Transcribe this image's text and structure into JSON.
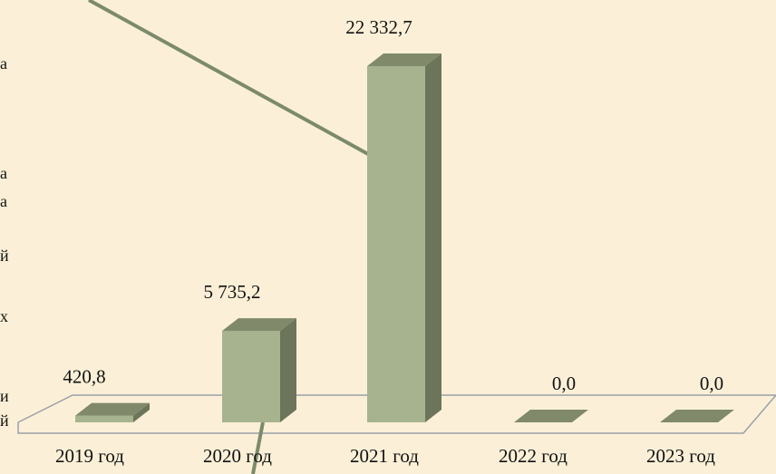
{
  "chart_data": {
    "type": "bar",
    "categories": [
      "2019 год",
      "2020 год",
      "2021 год",
      "2022 год",
      "2023 год"
    ],
    "values": [
      420.8,
      5735.2,
      22332.7,
      0.0,
      0.0
    ],
    "value_labels": [
      "420,8",
      "5 735,2",
      "22 332,7",
      "0,0",
      "0,0"
    ],
    "ylim": [
      0,
      22332.7
    ],
    "grid": false,
    "legend": "none",
    "colors": {
      "bar_front": "#a7b38f",
      "bar_side": "#6c7559",
      "bar_top": "#808a6b",
      "floor_line": "#9aa0a8",
      "callout_line": "#7c8a6c",
      "background": "#fbf0d7"
    }
  },
  "cropped_text_fragments": [
    "а",
    "а",
    "а",
    "й",
    "х",
    "и",
    "й"
  ]
}
